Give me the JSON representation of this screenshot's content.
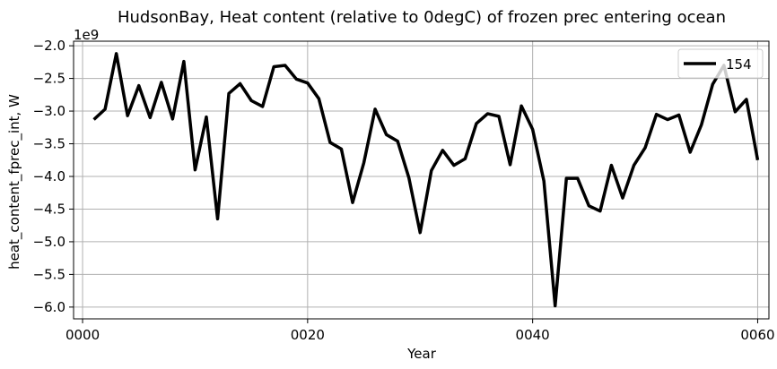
{
  "chart_data": {
    "type": "line",
    "title": "HudsonBay, Heat content (relative to 0degC) of frozen prec entering ocean",
    "xlabel": "Year",
    "ylabel": "heat_content_fprec_int, W",
    "offset_text": "1e9",
    "xlim": [
      -0.8,
      61.0
    ],
    "ylim": [
      -6.18,
      -1.93
    ],
    "y_scale_note": "values in units of 1e9 W",
    "x_ticks": [
      0,
      20,
      40,
      60
    ],
    "x_tick_labels": [
      "0000",
      "0020",
      "0040",
      "0060"
    ],
    "y_ticks": [
      -2.0,
      -2.5,
      -3.0,
      -3.5,
      -4.0,
      -4.5,
      -5.0,
      -5.5,
      -6.0
    ],
    "y_tick_labels": [
      "−2.0",
      "−2.5",
      "−3.0",
      "−3.5",
      "−4.0",
      "−4.5",
      "−5.0",
      "−5.5",
      "−6.0"
    ],
    "grid": true,
    "legend_position": "top-right",
    "series": [
      {
        "name": "154",
        "color": "#000000",
        "x": [
          1,
          2,
          3,
          4,
          5,
          6,
          7,
          8,
          9,
          10,
          11,
          12,
          13,
          14,
          15,
          16,
          17,
          18,
          19,
          20,
          21,
          22,
          23,
          24,
          25,
          26,
          27,
          28,
          29,
          30,
          31,
          32,
          33,
          34,
          35,
          36,
          37,
          38,
          39,
          40,
          41,
          42,
          43,
          44,
          45,
          46,
          47,
          48,
          49,
          50,
          51,
          52,
          53,
          54,
          55,
          56,
          57,
          58,
          59,
          60
        ],
        "values": [
          -3.13,
          -2.97,
          -2.12,
          -3.07,
          -2.61,
          -3.1,
          -2.56,
          -3.12,
          -2.24,
          -3.9,
          -3.09,
          -4.65,
          -2.73,
          -2.58,
          -2.84,
          -2.93,
          -2.32,
          -2.3,
          -2.51,
          -2.57,
          -2.81,
          -3.48,
          -3.58,
          -4.4,
          -3.79,
          -2.97,
          -3.36,
          -3.46,
          -4.02,
          -4.86,
          -3.91,
          -3.6,
          -3.83,
          -3.73,
          -3.19,
          -3.04,
          -3.08,
          -3.82,
          -2.92,
          -3.28,
          -4.07,
          -5.98,
          -4.03,
          -4.03,
          -4.45,
          -4.53,
          -3.83,
          -4.33,
          -3.83,
          -3.56,
          -3.05,
          -3.13,
          -3.06,
          -3.63,
          -3.21,
          -2.59,
          -2.3,
          -3.01,
          -2.82,
          -3.75
        ]
      }
    ]
  }
}
